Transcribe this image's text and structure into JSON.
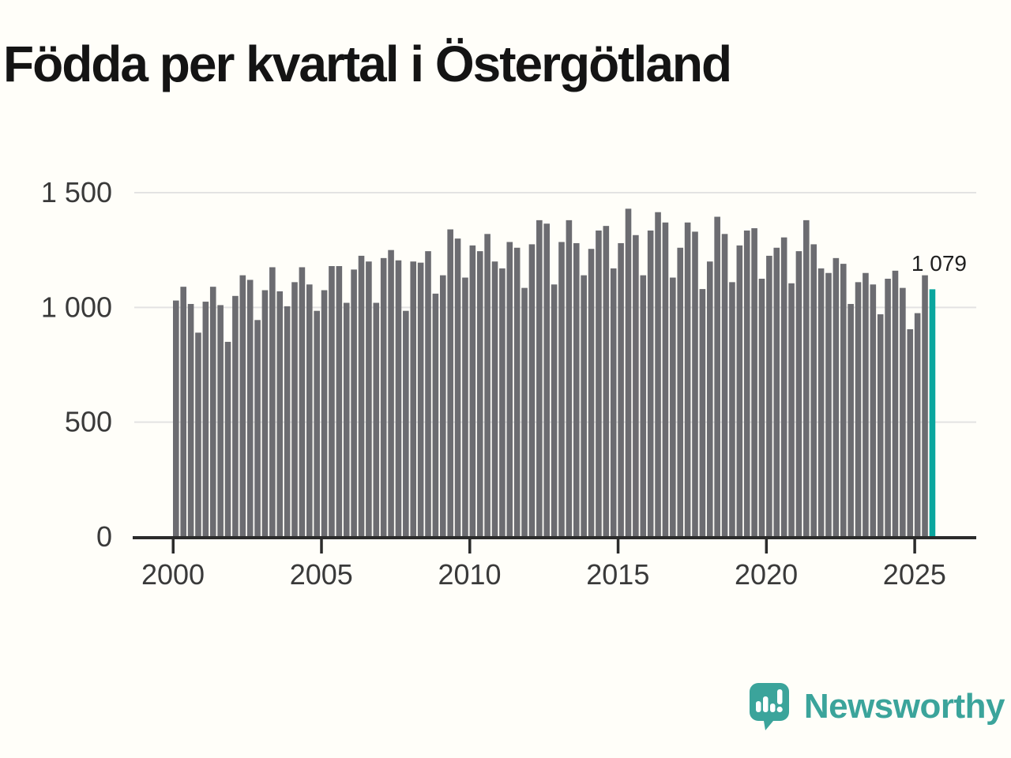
{
  "title": "Födda per kvartal i Östergötland",
  "annotation": {
    "last_value_label": "1 079"
  },
  "logo": {
    "text": "Newsworthy",
    "icon": "newsworthy-speech-bubble-chart-icon"
  },
  "colors": {
    "background": "#fffef9",
    "bar": "#6c6c71",
    "highlight": "#0aa69e",
    "grid": "#e3e3e3",
    "axis": "#2b2b2b",
    "tick_label": "#3a3a3a",
    "annotation": "#1f1f1f",
    "logo": "#3ba49b",
    "title": "#141414"
  },
  "chart_data": {
    "type": "bar",
    "title": "Födda per kvartal i Östergötland",
    "xlabel": "",
    "ylabel": "",
    "ylim": [
      0,
      1500
    ],
    "grid": "horizontal",
    "y_tick_values": [
      0,
      500,
      1000,
      1500
    ],
    "y_tick_labels": [
      "0",
      "500",
      "1 000",
      "1 500"
    ],
    "x_tick_years": [
      2000,
      2005,
      2010,
      2015,
      2020,
      2025
    ],
    "x_tick_labels": [
      "2000",
      "2005",
      "2010",
      "2015",
      "2020",
      "2025"
    ],
    "legend": "none",
    "highlight_last_bar": true,
    "categories": [
      "2000 Q1",
      "2000 Q2",
      "2000 Q3",
      "2000 Q4",
      "2001 Q1",
      "2001 Q2",
      "2001 Q3",
      "2001 Q4",
      "2002 Q1",
      "2002 Q2",
      "2002 Q3",
      "2002 Q4",
      "2003 Q1",
      "2003 Q2",
      "2003 Q3",
      "2003 Q4",
      "2004 Q1",
      "2004 Q2",
      "2004 Q3",
      "2004 Q4",
      "2005 Q1",
      "2005 Q2",
      "2005 Q3",
      "2005 Q4",
      "2006 Q1",
      "2006 Q2",
      "2006 Q3",
      "2006 Q4",
      "2007 Q1",
      "2007 Q2",
      "2007 Q3",
      "2007 Q4",
      "2008 Q1",
      "2008 Q2",
      "2008 Q3",
      "2008 Q4",
      "2009 Q1",
      "2009 Q2",
      "2009 Q3",
      "2009 Q4",
      "2010 Q1",
      "2010 Q2",
      "2010 Q3",
      "2010 Q4",
      "2011 Q1",
      "2011 Q2",
      "2011 Q3",
      "2011 Q4",
      "2012 Q1",
      "2012 Q2",
      "2012 Q3",
      "2012 Q4",
      "2013 Q1",
      "2013 Q2",
      "2013 Q3",
      "2013 Q4",
      "2014 Q1",
      "2014 Q2",
      "2014 Q3",
      "2014 Q4",
      "2015 Q1",
      "2015 Q2",
      "2015 Q3",
      "2015 Q4",
      "2016 Q1",
      "2016 Q2",
      "2016 Q3",
      "2016 Q4",
      "2017 Q1",
      "2017 Q2",
      "2017 Q3",
      "2017 Q4",
      "2018 Q1",
      "2018 Q2",
      "2018 Q3",
      "2018 Q4",
      "2019 Q1",
      "2019 Q2",
      "2019 Q3",
      "2019 Q4",
      "2020 Q1",
      "2020 Q2",
      "2020 Q3",
      "2020 Q4",
      "2021 Q1",
      "2021 Q2",
      "2021 Q3",
      "2021 Q4",
      "2022 Q1",
      "2022 Q2",
      "2022 Q3",
      "2022 Q4",
      "2023 Q1",
      "2023 Q2",
      "2023 Q3",
      "2023 Q4",
      "2024 Q1",
      "2024 Q2",
      "2024 Q3",
      "2024 Q4",
      "2025 Q1",
      "2025 Q2",
      "2025 Q3"
    ],
    "values": [
      1030,
      1090,
      1015,
      890,
      1025,
      1090,
      1010,
      850,
      1050,
      1140,
      1120,
      945,
      1075,
      1175,
      1070,
      1005,
      1110,
      1175,
      1100,
      985,
      1075,
      1180,
      1180,
      1020,
      1165,
      1225,
      1200,
      1020,
      1215,
      1250,
      1205,
      985,
      1200,
      1195,
      1245,
      1060,
      1140,
      1340,
      1300,
      1130,
      1270,
      1245,
      1320,
      1200,
      1170,
      1285,
      1260,
      1085,
      1275,
      1380,
      1365,
      1100,
      1285,
      1380,
      1280,
      1140,
      1255,
      1335,
      1355,
      1170,
      1280,
      1430,
      1315,
      1140,
      1335,
      1415,
      1370,
      1130,
      1260,
      1370,
      1330,
      1080,
      1200,
      1395,
      1320,
      1110,
      1270,
      1335,
      1345,
      1125,
      1225,
      1260,
      1305,
      1105,
      1245,
      1380,
      1275,
      1170,
      1150,
      1215,
      1190,
      1015,
      1110,
      1150,
      1100,
      970,
      1125,
      1160,
      1085,
      905,
      975,
      1140,
      1079
    ]
  }
}
